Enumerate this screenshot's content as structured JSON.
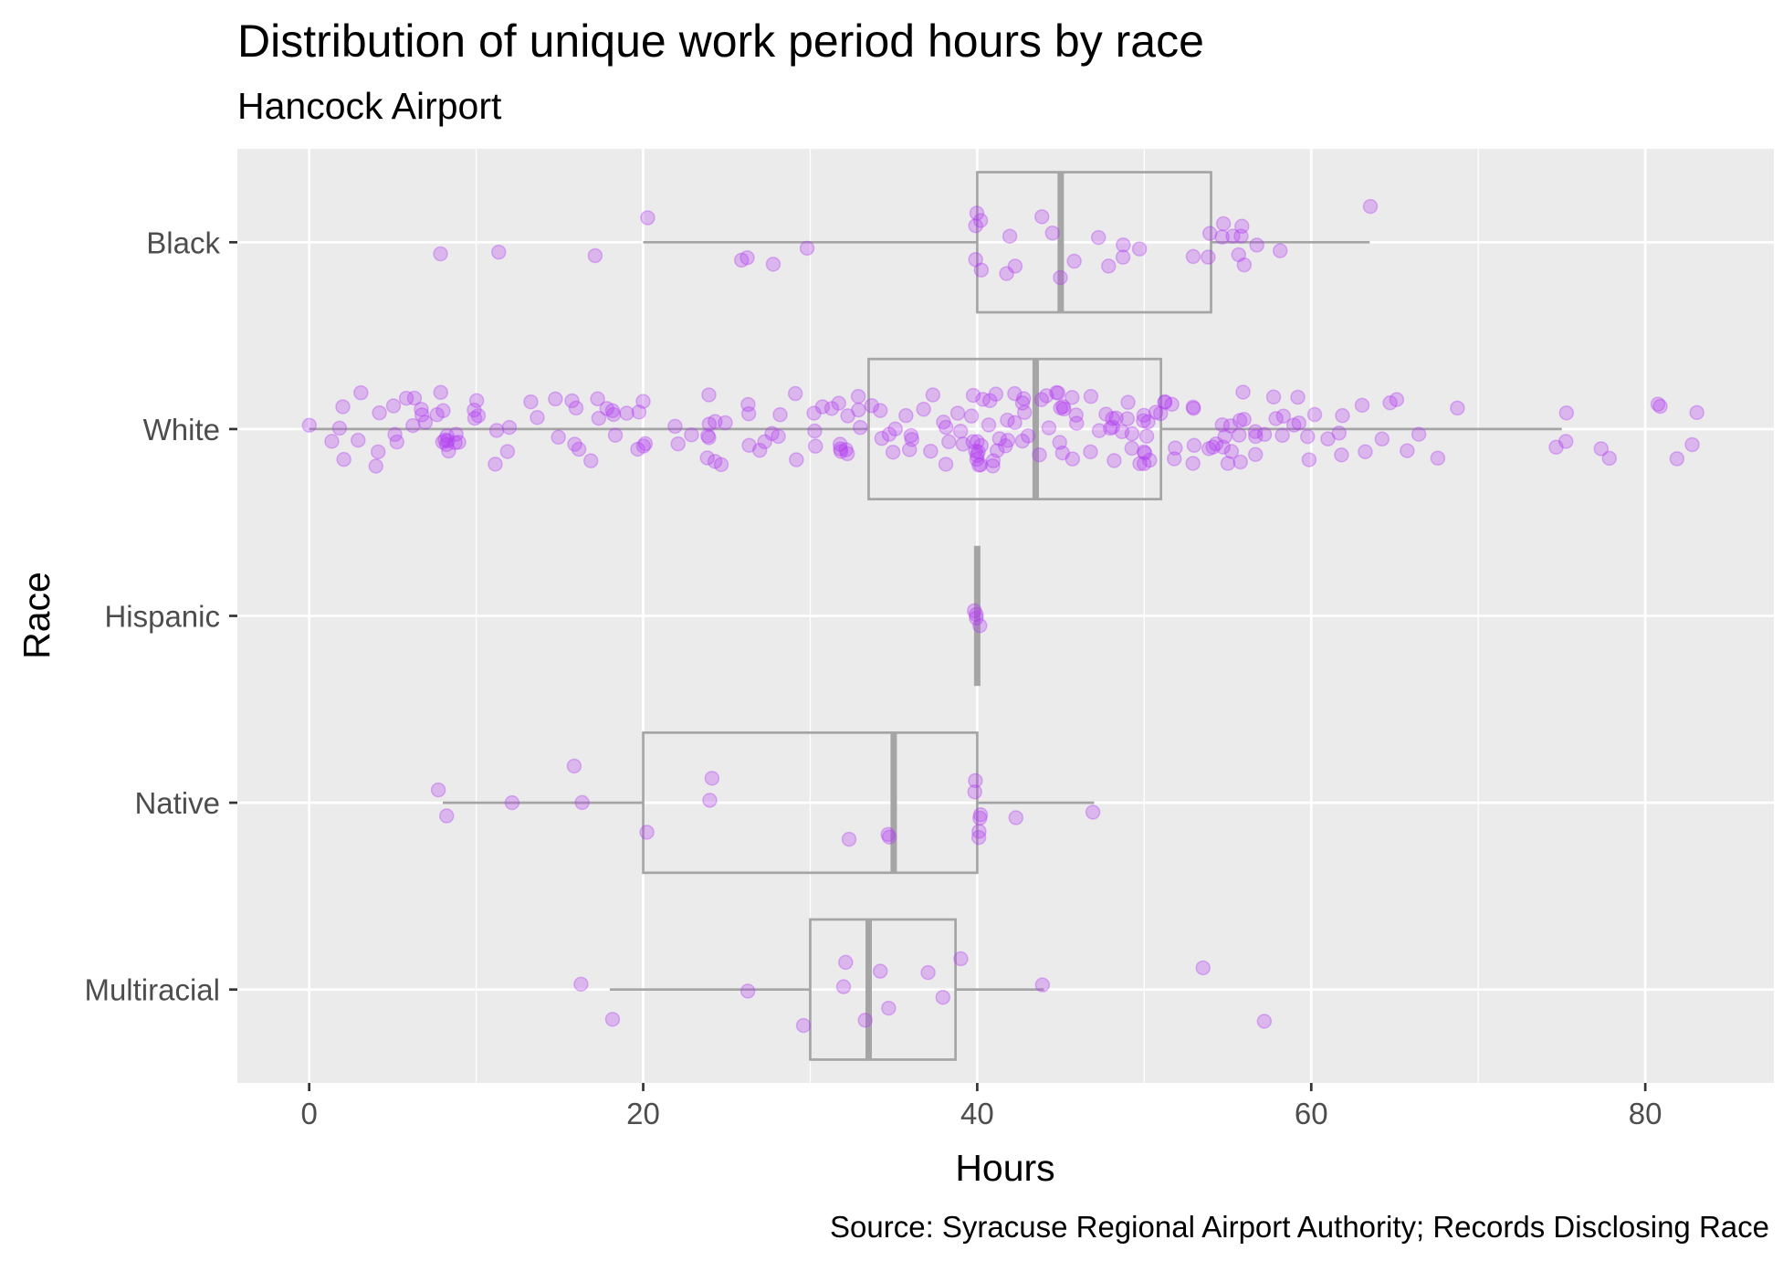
{
  "chart_data": {
    "type": "box",
    "title": "Distribution of unique work period hours by race",
    "subtitle": "Hancock Airport",
    "xlabel": "Hours",
    "ylabel": "Race",
    "caption": "Source: Syracuse Regional Airport Authority; Records Disclosing Race",
    "xlim": [
      -4.3,
      87.7
    ],
    "x_ticks": [
      0,
      20,
      40,
      60,
      80
    ],
    "x_tick_labels": [
      "0",
      "20",
      "40",
      "60",
      "80"
    ],
    "categories": [
      "Black",
      "White",
      "Hispanic",
      "Native",
      "Multiracial"
    ],
    "point_color": "#b23bf2",
    "box_color": "#a5a5a5",
    "panel_background": "#ebebeb",
    "grid": true,
    "legend": "none",
    "boxes": [
      {
        "category": "Black",
        "whisker_low": 20,
        "q1": 40,
        "median": 45,
        "q3": 54,
        "whisker_high": 63.5
      },
      {
        "category": "White",
        "whisker_low": 0,
        "q1": 33.5,
        "median": 43.5,
        "q3": 51,
        "whisker_high": 75
      },
      {
        "category": "Hispanic",
        "whisker_low": 40,
        "q1": 40,
        "median": 40,
        "q3": 40,
        "whisker_high": 40
      },
      {
        "category": "Native",
        "whisker_low": 8,
        "q1": 20,
        "median": 35,
        "q3": 40,
        "whisker_high": 47
      },
      {
        "category": "Multiracial",
        "whisker_low": 18,
        "q1": 30,
        "median": 33.5,
        "q3": 38.7,
        "whisker_high": 44
      }
    ],
    "points": [
      {
        "category": "Black",
        "x": [
          8,
          11,
          17,
          20,
          26,
          26,
          28,
          30,
          40,
          40,
          40,
          40,
          40,
          41.5,
          42,
          42.5,
          44,
          44.5,
          45,
          46,
          47,
          48,
          48.5,
          49,
          50,
          53,
          54,
          54,
          55,
          55,
          55,
          56,
          56,
          56,
          56,
          56.5,
          58,
          63.5
        ]
      },
      {
        "category": "White",
        "x": [
          0,
          1.5,
          1.5,
          2,
          2,
          3,
          3,
          4,
          4,
          4,
          5,
          5,
          5,
          6,
          6,
          6,
          6.5,
          6.5,
          7,
          8,
          8,
          8,
          8,
          8,
          8,
          8,
          8,
          8,
          9,
          9,
          9,
          10,
          10,
          10,
          10,
          11,
          11,
          12,
          12,
          13,
          14,
          15,
          15,
          16,
          16,
          16,
          16,
          17,
          17,
          17,
          18,
          18,
          18,
          18,
          19,
          20,
          20,
          20,
          20,
          20,
          22,
          22,
          23,
          24,
          24,
          24,
          24,
          24,
          24,
          24,
          25,
          25,
          26,
          26,
          26,
          27,
          27,
          28,
          28,
          28,
          29,
          29,
          30,
          30,
          30,
          31,
          31,
          32,
          32,
          32,
          32,
          32,
          32,
          32,
          33,
          33,
          33,
          34,
          34,
          34,
          35,
          35,
          35,
          36,
          36,
          36,
          36,
          37,
          37,
          37,
          38,
          38,
          38,
          38,
          39,
          39,
          39,
          40,
          40,
          40,
          40,
          40,
          40,
          40,
          40,
          40,
          40,
          40,
          40,
          41,
          41,
          41,
          41,
          41,
          41,
          41,
          42,
          42,
          42,
          42,
          42,
          43,
          43,
          43,
          43,
          43,
          44,
          44,
          44,
          44,
          45,
          45,
          45,
          45,
          45,
          45,
          45,
          46,
          46,
          46,
          46,
          47,
          47,
          47,
          48,
          48,
          48,
          48,
          48,
          48,
          49,
          49,
          49,
          49,
          49,
          50,
          50,
          50,
          50,
          50,
          50,
          50,
          50,
          50,
          51,
          51,
          51,
          51,
          52,
          52,
          52,
          53,
          53,
          53,
          53,
          54,
          54,
          54,
          55,
          55,
          55,
          55,
          55,
          55,
          56,
          56,
          56,
          56,
          56,
          57,
          57,
          57,
          57,
          58,
          58,
          58,
          58,
          59,
          59,
          59,
          60,
          60,
          60,
          61,
          62,
          62,
          62,
          63,
          63,
          64,
          64.5,
          65,
          66,
          66.5,
          67.5,
          68.5,
          75,
          75,
          75,
          77.5,
          77.5,
          81,
          81,
          82,
          83,
          83
        ]
      },
      {
        "category": "Hispanic",
        "x": [
          40,
          40,
          40,
          40
        ]
      },
      {
        "category": "Native",
        "x": [
          8,
          8,
          12,
          16,
          16,
          20,
          24,
          24,
          32,
          35,
          35,
          40,
          40,
          40,
          40,
          40,
          40,
          42,
          47
        ]
      },
      {
        "category": "Multiracial",
        "x": [
          16,
          18,
          26.5,
          29.5,
          32,
          32,
          33,
          34,
          35,
          37,
          38,
          39,
          44,
          53.5,
          57.5
        ]
      }
    ]
  }
}
